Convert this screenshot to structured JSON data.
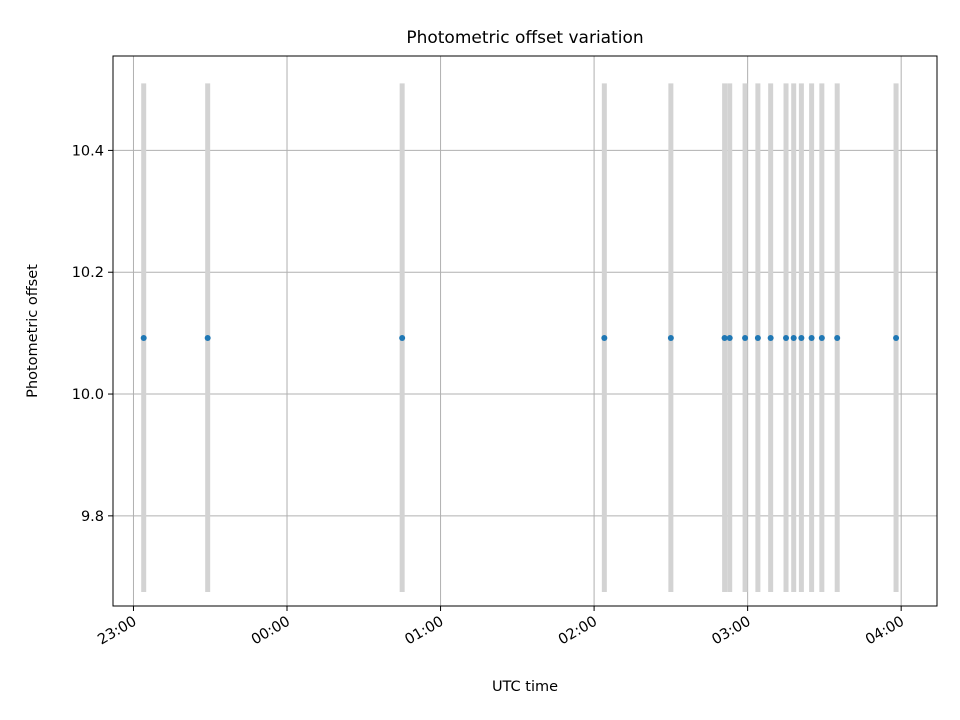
{
  "chart_data": {
    "type": "scatter",
    "title": "Photometric offset variation",
    "xlabel": "UTC time",
    "ylabel": "Photometric offset",
    "x_unit": "UTC time (hours, 23:00 = 23.0, values after midnight > 24)",
    "xlim": [
      "22:52",
      "04:14"
    ],
    "ylim": [
      9.652,
      10.555
    ],
    "x_ticks": [
      "23:00",
      "00:00",
      "01:00",
      "02:00",
      "03:00",
      "04:00"
    ],
    "y_ticks": [
      "9.8",
      "10.0",
      "10.2",
      "10.4"
    ],
    "y_tick_values": [
      9.8,
      10.0,
      10.2,
      10.4
    ],
    "grid": true,
    "error_bar_color": "#d3d3d3",
    "point_color": "#1f77b4",
    "series": [
      {
        "x": [
          "23:04",
          "23:29",
          "00:45",
          "02:04",
          "02:30",
          "02:51",
          "02:53",
          "02:59",
          "03:04",
          "03:09",
          "03:15",
          "03:18",
          "03:21",
          "03:25",
          "03:29",
          "03:35",
          "03:58"
        ],
        "y": [
          10.092,
          10.092,
          10.092,
          10.092,
          10.092,
          10.092,
          10.092,
          10.092,
          10.092,
          10.092,
          10.092,
          10.092,
          10.092,
          10.092,
          10.092,
          10.092,
          10.092
        ],
        "yerr_low": [
          9.675,
          9.675,
          9.675,
          9.675,
          9.675,
          9.675,
          9.675,
          9.675,
          9.675,
          9.675,
          9.675,
          9.675,
          9.675,
          9.675,
          9.675,
          9.675,
          9.675
        ],
        "yerr_high": [
          10.51,
          10.51,
          10.51,
          10.51,
          10.51,
          10.51,
          10.51,
          10.51,
          10.51,
          10.51,
          10.51,
          10.51,
          10.51,
          10.51,
          10.51,
          10.51,
          10.51
        ]
      }
    ]
  }
}
